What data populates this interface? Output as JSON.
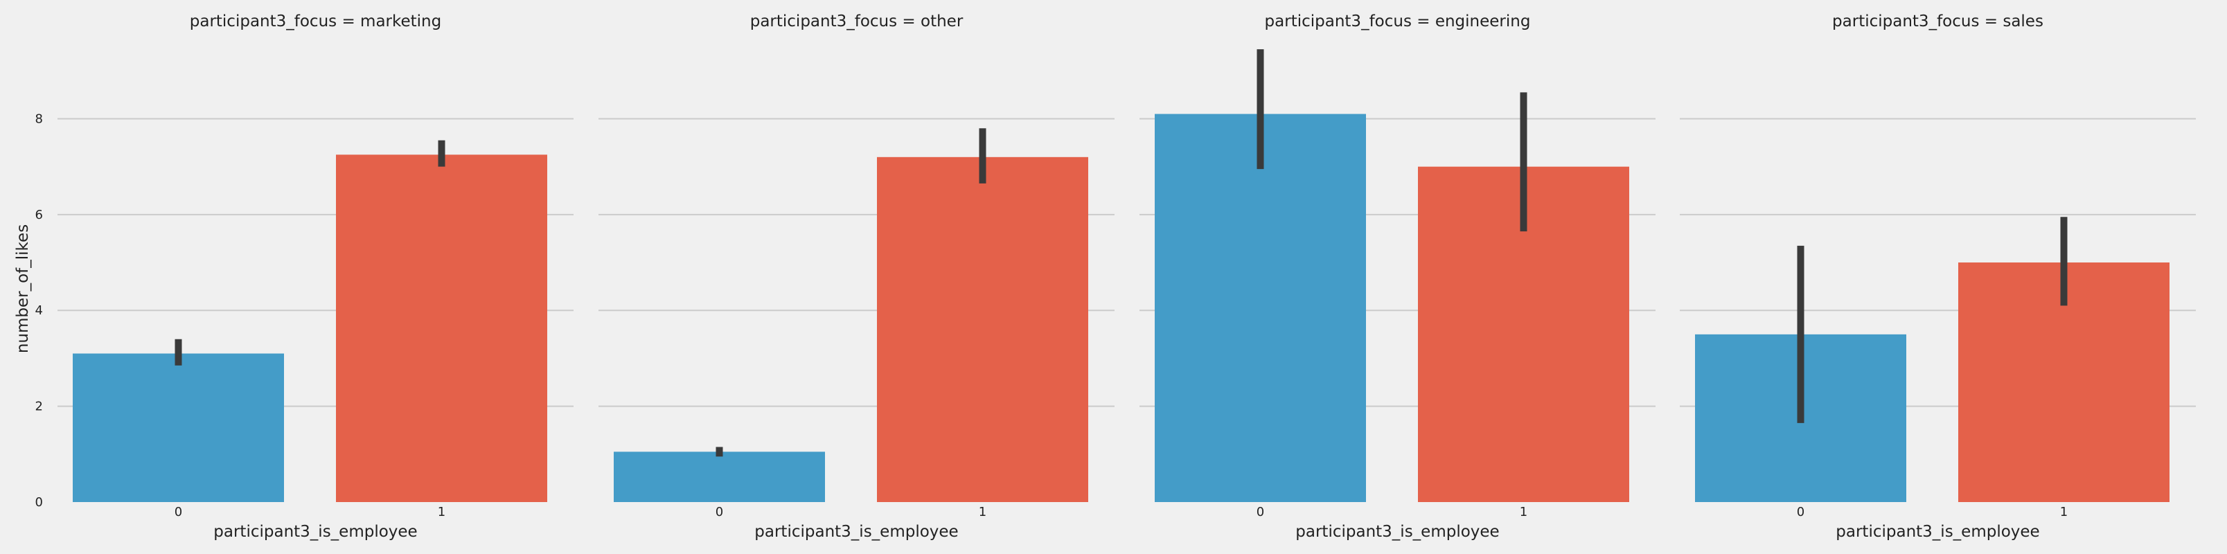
{
  "chart_data": {
    "type": "bar",
    "facet_variable": "participant3_focus",
    "facet_title_template": "participant3_focus = {value}",
    "facets": [
      "marketing",
      "other",
      "engineering",
      "sales"
    ],
    "categories": [
      "0",
      "1"
    ],
    "xlabel": "participant3_is_employee",
    "ylabel": "number_of_likes",
    "ylim": [
      0,
      9.9
    ],
    "yticks": [
      0,
      2,
      4,
      6,
      8
    ],
    "grid": "horizontal",
    "colors": {
      "0": "#449cc8",
      "1": "#e4614a",
      "error_bar": "#3a3a3a",
      "background": "#f0f0f0",
      "grid": "#cbcbcb"
    },
    "panels": [
      {
        "facet": "marketing",
        "title": "participant3_focus = marketing",
        "values": [
          3.1,
          7.25
        ],
        "ci": [
          [
            2.85,
            3.4
          ],
          [
            7.0,
            7.55
          ]
        ]
      },
      {
        "facet": "other",
        "title": "participant3_focus = other",
        "values": [
          1.05,
          7.2
        ],
        "ci": [
          [
            0.95,
            1.15
          ],
          [
            6.65,
            7.8
          ]
        ]
      },
      {
        "facet": "engineering",
        "title": "participant3_focus = engineering",
        "values": [
          8.1,
          7.0
        ],
        "ci": [
          [
            6.95,
            9.45
          ],
          [
            5.65,
            8.55
          ]
        ]
      },
      {
        "facet": "sales",
        "title": "participant3_focus = sales",
        "values": [
          3.5,
          5.0
        ],
        "ci": [
          [
            1.65,
            5.35
          ],
          [
            4.1,
            5.95
          ]
        ]
      }
    ]
  }
}
